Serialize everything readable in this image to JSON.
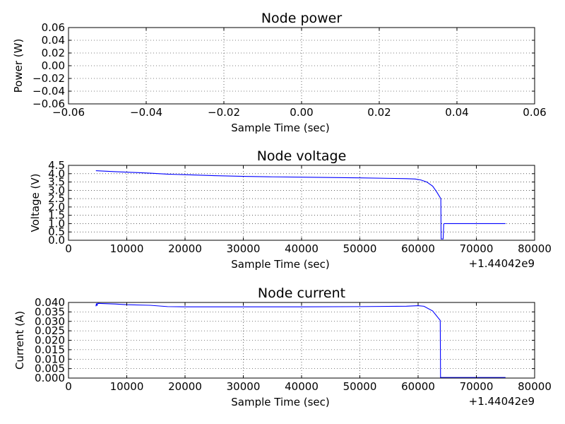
{
  "chart_data": [
    {
      "type": "line",
      "title": "Node power",
      "xlabel": "Sample Time (sec)",
      "ylabel": "Power (W)",
      "xlim": [
        -0.06,
        0.06
      ],
      "ylim": [
        -0.06,
        0.06
      ],
      "xticks": [
        "−0.06",
        "−0.04",
        "−0.02",
        "0.00",
        "0.02",
        "0.04",
        "0.06"
      ],
      "yticks": [
        "−0.06",
        "−0.04",
        "−0.02",
        "0.00",
        "0.02",
        "0.04",
        "0.06"
      ],
      "x_offset_label": "",
      "grid": true,
      "series": [
        {
          "color": "#0000ff",
          "x": [],
          "y": []
        }
      ]
    },
    {
      "type": "line",
      "title": "Node voltage",
      "xlabel": "Sample Time (sec)",
      "ylabel": "Voltage (V)",
      "xlim": [
        0,
        80000
      ],
      "ylim": [
        0,
        4.5
      ],
      "xticks": [
        "0",
        "10000",
        "20000",
        "30000",
        "40000",
        "50000",
        "60000",
        "70000",
        "80000"
      ],
      "yticks": [
        "0.0",
        "0.5",
        "1.0",
        "1.5",
        "2.0",
        "2.5",
        "3.0",
        "3.5",
        "4.0",
        "4.5"
      ],
      "x_offset_label": "+1.44042e9",
      "grid": true,
      "series": [
        {
          "color": "#0000ff",
          "x": [
            4700,
            8000,
            12000,
            14000,
            17000,
            20000,
            25000,
            30000,
            35000,
            40000,
            45000,
            50000,
            55000,
            58000,
            59500,
            60500,
            61500,
            62500,
            63200,
            63900,
            63950,
            64100,
            64300,
            64400,
            64500,
            70000,
            75000
          ],
          "y": [
            4.18,
            4.12,
            4.06,
            4.03,
            3.97,
            3.94,
            3.88,
            3.84,
            3.81,
            3.79,
            3.77,
            3.75,
            3.72,
            3.7,
            3.68,
            3.62,
            3.5,
            3.25,
            2.9,
            2.5,
            0.08,
            0.08,
            0.08,
            0.98,
            1.0,
            1.0,
            1.0
          ]
        }
      ]
    },
    {
      "type": "line",
      "title": "Node current",
      "xlabel": "Sample Time (sec)",
      "ylabel": "Current (A)",
      "xlim": [
        0,
        80000
      ],
      "ylim": [
        0,
        0.04
      ],
      "xticks": [
        "0",
        "10000",
        "20000",
        "30000",
        "40000",
        "50000",
        "60000",
        "70000",
        "80000"
      ],
      "yticks": [
        "0.000",
        "0.005",
        "0.010",
        "0.015",
        "0.020",
        "0.025",
        "0.030",
        "0.035",
        "0.040"
      ],
      "x_offset_label": "+1.44042e9",
      "grid": true,
      "series": [
        {
          "color": "#0000ff",
          "x": [
            4700,
            4800,
            4900,
            5000,
            8000,
            10000,
            14000,
            17000,
            20000,
            30000,
            40000,
            50000,
            58000,
            60000,
            61000,
            62500,
            63800,
            63850,
            64000,
            75000
          ],
          "y": [
            0.038,
            0.0395,
            0.0383,
            0.0395,
            0.0392,
            0.0388,
            0.0385,
            0.0378,
            0.0377,
            0.0377,
            0.0377,
            0.0378,
            0.038,
            0.0383,
            0.038,
            0.0355,
            0.0305,
            0.0003,
            0.0003,
            0.0003
          ]
        }
      ]
    }
  ]
}
